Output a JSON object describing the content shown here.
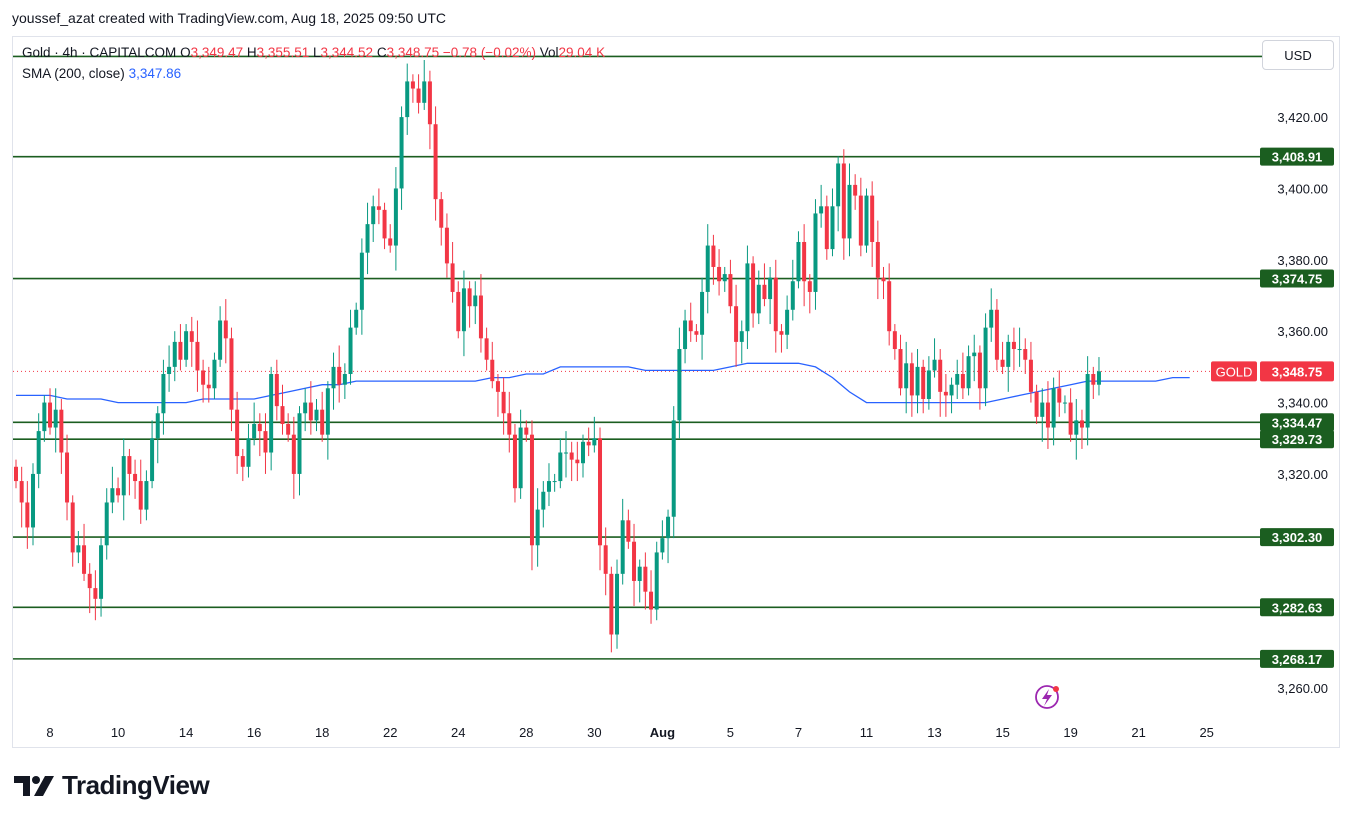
{
  "header": {
    "credit": "youssef_azat created with TradingView.com, Aug 18, 2025 09:50 UTC"
  },
  "legend": {
    "symbol": "Gold · 4h · CAPITALCOM",
    "open_label": "O",
    "open": "3,349.47",
    "high_label": "H",
    "high": "3,355.51",
    "low_label": "L",
    "low": "3,344.52",
    "close_label": "C",
    "close": "3,348.75",
    "change": "−0.78 (−0.02%)",
    "vol_label": "Vol",
    "vol": "29.04 K",
    "sma_label": "SMA (200, close)",
    "sma_value": "3,347.86"
  },
  "currency_button": "USD",
  "brand": {
    "name": "TradingView"
  },
  "colors": {
    "up": "#089981",
    "down": "#f23645",
    "sma": "#2962ff",
    "level": "#1b5e20",
    "level_label_bg": "#1b5e20"
  },
  "chart_data": {
    "type": "candlestick",
    "interval": "4h",
    "ylim": [
      3253,
      3436
    ],
    "y_ticks": [
      3260,
      3320,
      3340,
      3360,
      3380,
      3400,
      3420
    ],
    "y_tick_labels": [
      "3,260.00",
      "3,320.00",
      "3,340.00",
      "3,360.00",
      "3,380.00",
      "3,400.00",
      "3,420.00"
    ],
    "x_ticks": [
      {
        "label": "8",
        "i": 6
      },
      {
        "label": "10",
        "i": 18
      },
      {
        "label": "14",
        "i": 30
      },
      {
        "label": "16",
        "i": 42
      },
      {
        "label": "18",
        "i": 54
      },
      {
        "label": "22",
        "i": 66
      },
      {
        "label": "24",
        "i": 78
      },
      {
        "label": "28",
        "i": 90
      },
      {
        "label": "30",
        "i": 102
      },
      {
        "label": "Aug",
        "i": 114,
        "bold": true
      },
      {
        "label": "5",
        "i": 126
      },
      {
        "label": "7",
        "i": 138
      },
      {
        "label": "11",
        "i": 150
      },
      {
        "label": "13",
        "i": 162
      },
      {
        "label": "15",
        "i": 174
      },
      {
        "label": "19",
        "i": 186
      },
      {
        "label": "21",
        "i": 198
      },
      {
        "label": "25",
        "i": 210
      }
    ],
    "levels": [
      {
        "value": 3437.0,
        "label": ""
      },
      {
        "value": 3408.91,
        "label": "3,408.91"
      },
      {
        "value": 3374.75,
        "label": "3,374.75"
      },
      {
        "value": 3334.47,
        "label": "3,334.47"
      },
      {
        "value": 3329.73,
        "label": "3,329.73"
      },
      {
        "value": 3302.3,
        "label": "3,302.30"
      },
      {
        "value": 3282.63,
        "label": "3,282.63"
      },
      {
        "value": 3268.17,
        "label": "3,268.17"
      }
    ],
    "last_price": {
      "name": "GOLD",
      "value": 3348.75,
      "label": "3,348.75"
    },
    "closes": [
      3318,
      3312,
      3305,
      3320,
      3332,
      3340,
      3333,
      3338,
      3326,
      3312,
      3298,
      3300,
      3292,
      3288,
      3285,
      3300,
      3312,
      3316,
      3314,
      3325,
      3320,
      3318,
      3310,
      3318,
      3330,
      3337,
      3348,
      3350,
      3357,
      3352,
      3360,
      3357,
      3349,
      3345,
      3344,
      3352,
      3363,
      3358,
      3338,
      3325,
      3322,
      3330,
      3334,
      3332,
      3326,
      3348,
      3339,
      3334,
      3331,
      3320,
      3337,
      3340,
      3335,
      3338,
      3331,
      3344,
      3350,
      3345,
      3348,
      3361,
      3366,
      3382,
      3390,
      3395,
      3394,
      3386,
      3384,
      3400,
      3420,
      3430,
      3428,
      3424,
      3430,
      3418,
      3397,
      3389,
      3379,
      3371,
      3360,
      3372,
      3367,
      3370,
      3358,
      3352,
      3346,
      3343,
      3337,
      3331,
      3316,
      3333,
      3331,
      3300,
      3310,
      3315,
      3318,
      3318,
      3326,
      3326,
      3324,
      3323,
      3329,
      3328,
      3330,
      3300,
      3292,
      3275,
      3292,
      3307,
      3301,
      3290,
      3294,
      3287,
      3282,
      3298,
      3302,
      3308,
      3335,
      3355,
      3363,
      3360,
      3359,
      3371,
      3384,
      3378,
      3374,
      3376,
      3367,
      3357,
      3360,
      3379,
      3365,
      3373,
      3369,
      3375,
      3360,
      3359,
      3366,
      3374,
      3385,
      3374,
      3371,
      3393,
      3395,
      3383,
      3395,
      3407,
      3386,
      3401,
      3398,
      3384,
      3398,
      3385,
      3375,
      3374,
      3360,
      3355,
      3344,
      3351,
      3342,
      3350,
      3341,
      3349,
      3352,
      3343,
      3342,
      3345,
      3348,
      3344,
      3353,
      3354,
      3344,
      3361,
      3366,
      3352,
      3350,
      3357,
      3355,
      3355,
      3352,
      3343,
      3336,
      3340,
      3333,
      3344,
      3340,
      3340,
      3331,
      3335,
      3333,
      3348,
      3345,
      3348.75
    ],
    "sma200": [
      3342,
      3342,
      3342,
      3341,
      3341,
      3341,
      3340,
      3340,
      3340,
      3340,
      3340,
      3341,
      3341,
      3341,
      3341,
      3342,
      3343,
      3344,
      3345,
      3345,
      3346,
      3346,
      3346,
      3346,
      3346,
      3346,
      3346,
      3346,
      3347,
      3347,
      3348,
      3348,
      3350,
      3350,
      3350,
      3350,
      3350,
      3349,
      3349,
      3349,
      3349,
      3349,
      3350,
      3351,
      3351,
      3351,
      3351,
      3350,
      3347,
      3343,
      3340,
      3340,
      3340,
      3340,
      3340,
      3340,
      3340,
      3340,
      3341,
      3342,
      3343,
      3344,
      3345,
      3346,
      3346,
      3346,
      3346,
      3346,
      3347,
      3347
    ],
    "sma_start_index": 0,
    "sma_step": 3
  }
}
